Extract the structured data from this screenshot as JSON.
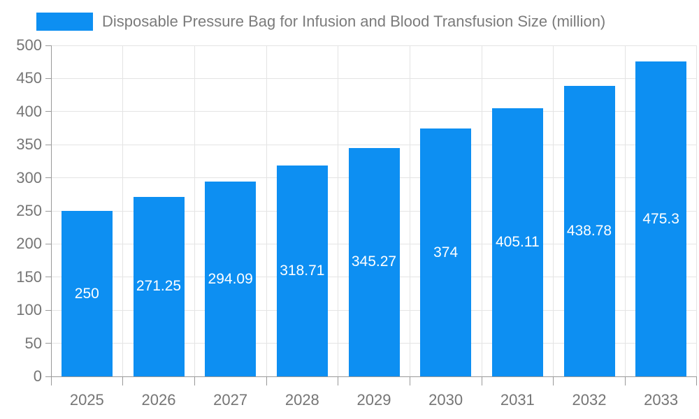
{
  "legend": {
    "label": "Disposable Pressure Bag for Infusion and Blood Transfusion Size (million)"
  },
  "chart_data": {
    "type": "bar",
    "title": "Disposable Pressure Bag for Infusion and Blood Transfusion Size (million)",
    "categories": [
      "2025",
      "2026",
      "2027",
      "2028",
      "2029",
      "2030",
      "2031",
      "2032",
      "2033"
    ],
    "values": [
      250,
      271.25,
      294.09,
      318.71,
      345.27,
      374,
      405.11,
      438.78,
      475.3
    ],
    "value_labels": [
      "250",
      "271.25",
      "294.09",
      "318.71",
      "345.27",
      "374",
      "405.11",
      "438.78",
      "475.3"
    ],
    "xlabel": "",
    "ylabel": "",
    "ylim": [
      0,
      500
    ],
    "ytick_step": 50,
    "ytick_labels": [
      "0",
      "50",
      "100",
      "150",
      "200",
      "250",
      "300",
      "350",
      "400",
      "450",
      "500"
    ],
    "grid": "on",
    "legend_position": "top-left",
    "colors": {
      "bar": "#0d8ff2",
      "grid": "#e4e4e4",
      "axis": "#999999",
      "tick_label": "#757575",
      "title_text": "#7b7b7b",
      "value_label": "#ffffff"
    }
  }
}
